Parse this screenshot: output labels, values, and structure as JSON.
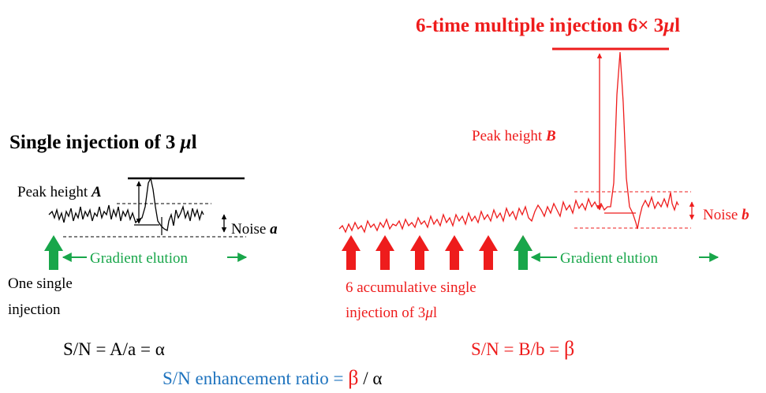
{
  "colors": {
    "black": "#000000",
    "red": "#ee1c1c",
    "green": "#18a64a",
    "blue": "#1e73be"
  },
  "left": {
    "title_text": "Single injection of 3 ",
    "title_mu": "μ",
    "title_unit": "l",
    "peak_label": "Peak height ",
    "peak_var": "A",
    "noise_label": "Noise ",
    "noise_var": "a",
    "gradient_label": "Gradient elution",
    "injection_line1": "One single",
    "injection_line2": "injection",
    "formula_prefix": "S/N = A/a = ",
    "formula_symbol": "α"
  },
  "right": {
    "title_text": "6-time multiple injection 6× 3",
    "title_mu": "μ",
    "title_unit": "l",
    "peak_label": "Peak height ",
    "peak_var": "B",
    "noise_label": "Noise ",
    "noise_var": "b",
    "gradient_label": "Gradient elution",
    "injection_line1": "6 accumulative single",
    "injection_line2_text": "injection of 3",
    "injection_line2_mu": "μ",
    "injection_line2_unit": "l",
    "formula_prefix": "S/N = B/b = ",
    "formula_symbol": "β",
    "arrow_count": 6
  },
  "ratio": {
    "text": "S/N enhancement ratio = ",
    "beta": "β",
    "sep": " / ",
    "alpha": "α"
  }
}
